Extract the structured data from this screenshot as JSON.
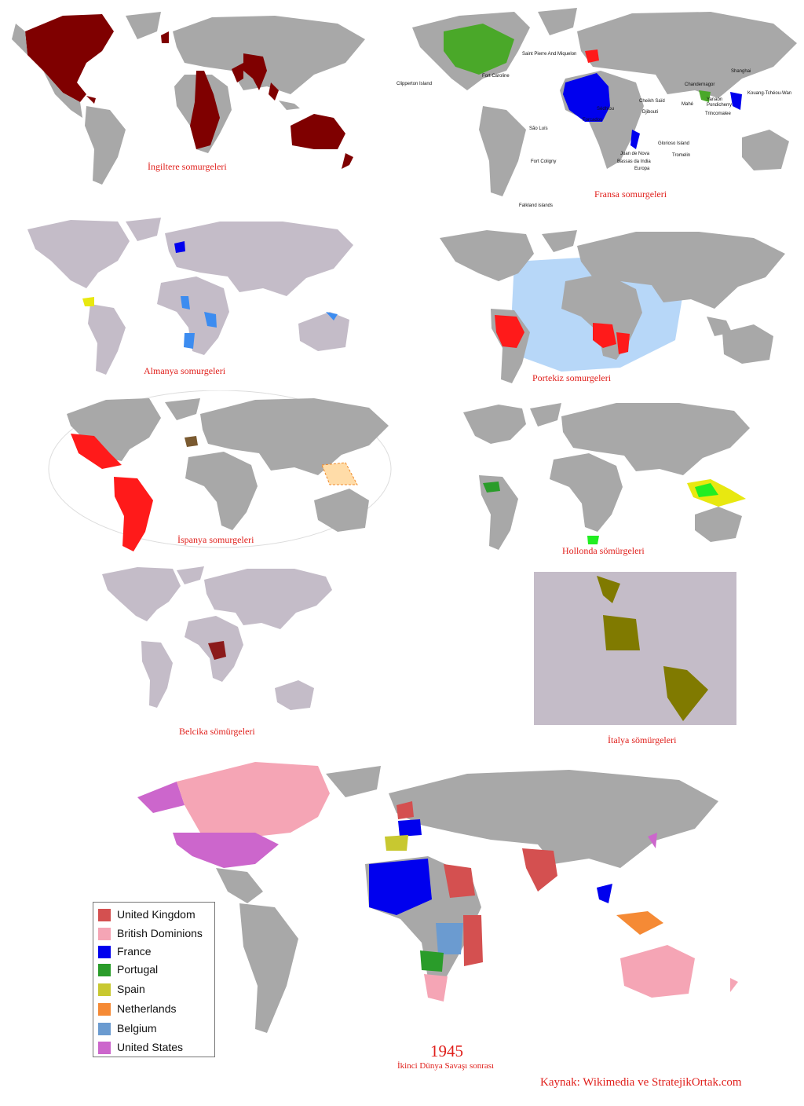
{
  "maps": [
    {
      "id": "britain",
      "caption": "İngiltere somurgeleri",
      "highlight_color": "#7f0000"
    },
    {
      "id": "france",
      "caption": "Fransa somurgeleri",
      "highlight_color": "#0000ee",
      "labels": [
        "Saint Pierre And Miquelon",
        "Clipperton Island",
        "Fort Caroline",
        "São Luís",
        "Fort Coligny",
        "Falkland islands",
        "Shanghai",
        "Chandernagor",
        "Yanaon",
        "Pondicherry",
        "Mahé",
        "Trincomalee",
        "Kouang-Tchéou-Wan",
        "Cheikh Saïd",
        "Djibouti",
        "Sédhiou",
        "Forcados",
        "Juan de Nova",
        "Bassas da India",
        "Europa",
        "Glorioso Island",
        "Tromelin"
      ]
    },
    {
      "id": "germany",
      "caption": "Almanya somurgeleri",
      "highlight_color": "#3c8cf0"
    },
    {
      "id": "portugal",
      "caption": "Portekiz somurgeleri",
      "highlight_color": "#ff1a1a"
    },
    {
      "id": "spain",
      "caption": "İspanya somurgeleri",
      "highlight_color": "#ff1a1a"
    },
    {
      "id": "netherlands",
      "caption": "Hollonda sömürgeleri",
      "highlight_color": "#22ee22"
    },
    {
      "id": "belgium",
      "caption": "Belcika sömürgeleri",
      "highlight_color": "#8b1a1a"
    },
    {
      "id": "italy",
      "caption": "İtalya sömürgeleri",
      "highlight_color": "#807a00"
    }
  ],
  "legend": [
    {
      "label": "United Kingdom",
      "color": "#d45050"
    },
    {
      "label": "British Dominions",
      "color": "#f5a5b5"
    },
    {
      "label": "France",
      "color": "#0000ee"
    },
    {
      "label": "Portugal",
      "color": "#2a9c2a"
    },
    {
      "label": "Spain",
      "color": "#c8c830"
    },
    {
      "label": "Netherlands",
      "color": "#f58a35"
    },
    {
      "label": "Belgium",
      "color": "#6b9bd0"
    },
    {
      "label": "United States",
      "color": "#cc66cc"
    }
  ],
  "final_map": {
    "year": "1945",
    "subtitle": "İkinci Dünya Savaşı sonrası"
  },
  "source": "Kaynak: Wikimedia ve StratejikOrtak.com"
}
